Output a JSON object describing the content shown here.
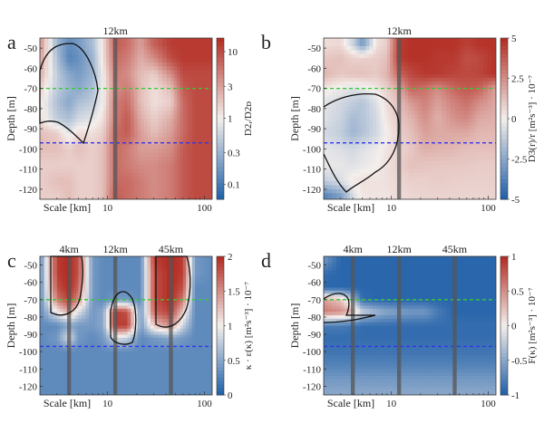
{
  "chart_data": [
    {
      "panel": "a",
      "type": "heatmap",
      "xlabel": "Scale [km]",
      "ylabel": "Depth [m]",
      "xscale": "log",
      "xlim": [
        2,
        120
      ],
      "ylim": [
        -125,
        -45
      ],
      "xticks": [
        {
          "value": 10,
          "label": "10"
        },
        {
          "value": 100,
          "label": "100"
        }
      ],
      "yticks": [
        -50,
        -60,
        -70,
        -80,
        -90,
        -100,
        -110,
        -120
      ],
      "vlines": [
        {
          "x": 12,
          "label": "12km"
        }
      ],
      "hlines": [
        {
          "y": -70,
          "color": "#33cc33"
        },
        {
          "y": -97,
          "color": "#3333ee"
        }
      ],
      "colorbar": {
        "label": "D2ᵣ/D2ᴅ",
        "scale": "log",
        "range": [
          0.06,
          16
        ],
        "ticks": [
          {
            "value": 0.1,
            "label": "0.1"
          },
          {
            "value": 0.3,
            "label": "0.3"
          },
          {
            "value": 1,
            "label": "1"
          },
          {
            "value": 3,
            "label": "3"
          },
          {
            "value": 10,
            "label": "10"
          }
        ]
      },
      "field_description": {
        "x_km": [
          2,
          3,
          4,
          5,
          7,
          9,
          12,
          16,
          22,
          30,
          45,
          60,
          80,
          120
        ],
        "depth_m": [
          -47,
          -55,
          -63,
          -70,
          -77,
          -85,
          -92,
          -100,
          -108,
          -116,
          -124
        ],
        "values_log10": [
          [
            0.6,
            -0.5,
            -0.8,
            -0.7,
            -0.4,
            0.1,
            0.9,
            0.8,
            0.5,
            0.9,
            1.1,
            1.1,
            1.1,
            1.1
          ],
          [
            0.5,
            -0.4,
            -0.9,
            -0.8,
            -0.5,
            0.1,
            0.8,
            0.7,
            0.4,
            0.6,
            1.0,
            1.1,
            1.1,
            1.1
          ],
          [
            0.4,
            -0.3,
            -0.6,
            -0.7,
            -0.5,
            0.0,
            0.7,
            0.6,
            0.3,
            0.2,
            0.6,
            1.0,
            1.0,
            1.0
          ],
          [
            0.2,
            -0.3,
            -0.5,
            -0.6,
            -0.4,
            0.0,
            0.6,
            0.7,
            0.3,
            0.1,
            0.3,
            0.9,
            1.0,
            1.0
          ],
          [
            0.1,
            -0.4,
            -0.6,
            -0.4,
            -0.3,
            0.0,
            0.7,
            0.8,
            0.3,
            0.1,
            0.2,
            0.8,
            1.0,
            1.0
          ],
          [
            0.1,
            -0.3,
            -0.4,
            -0.2,
            -0.1,
            0.1,
            0.7,
            0.9,
            0.4,
            0.2,
            0.4,
            0.8,
            1.0,
            1.0
          ],
          [
            0.3,
            0.2,
            -0.1,
            0.1,
            0.1,
            0.2,
            0.8,
            0.9,
            0.5,
            0.3,
            0.5,
            0.8,
            1.0,
            1.0
          ],
          [
            0.3,
            0.3,
            0.2,
            0.3,
            0.2,
            0.3,
            0.8,
            0.7,
            0.5,
            0.5,
            0.6,
            0.9,
            1.0,
            1.0
          ],
          [
            0.2,
            0.2,
            0.2,
            0.2,
            0.2,
            0.3,
            0.8,
            0.7,
            0.6,
            0.6,
            0.7,
            0.9,
            1.0,
            1.0
          ],
          [
            0.2,
            0.3,
            0.3,
            0.2,
            0.2,
            0.3,
            0.8,
            0.8,
            0.7,
            0.6,
            0.7,
            0.9,
            1.0,
            1.0
          ],
          [
            0.2,
            0.2,
            0.3,
            0.2,
            0.2,
            0.3,
            0.9,
            0.8,
            0.7,
            0.6,
            0.7,
            0.9,
            1.0,
            1.0
          ]
        ],
        "color_range": [
          -1.2,
          1.2
        ]
      }
    },
    {
      "panel": "b",
      "type": "heatmap",
      "xlabel": "Scale [km]",
      "ylabel": "Depth [m]",
      "xscale": "log",
      "xlim": [
        2,
        120
      ],
      "ylim": [
        -125,
        -45
      ],
      "xticks": [
        {
          "value": 10,
          "label": "10"
        },
        {
          "value": 100,
          "label": "100"
        }
      ],
      "yticks": [
        -50,
        -60,
        -70,
        -80,
        -90,
        -100,
        -110,
        -120
      ],
      "vlines": [
        {
          "x": 12,
          "label": "12km"
        }
      ],
      "hlines": [
        {
          "y": -70,
          "color": "#33cc33"
        },
        {
          "y": -97,
          "color": "#3333ee"
        }
      ],
      "colorbar": {
        "label": "D3(r)/r [m²s⁻³] · 10⁻⁷",
        "scale": "linear",
        "range": [
          -5,
          5
        ],
        "ticks": [
          {
            "value": -5,
            "label": "-5"
          },
          {
            "value": -2.5,
            "label": "-2.5"
          },
          {
            "value": 0,
            "label": "0"
          },
          {
            "value": 2.5,
            "label": "2.5"
          },
          {
            "value": 5,
            "label": "5"
          }
        ]
      },
      "field_description": {
        "x_km": [
          2,
          3,
          4,
          5,
          7,
          9,
          12,
          16,
          22,
          30,
          45,
          60,
          80,
          120
        ],
        "depth_m": [
          -47,
          -55,
          -63,
          -70,
          -77,
          -85,
          -92,
          -100,
          -108,
          -116,
          -124
        ],
        "values": [
          [
            0.4,
            0.5,
            -1.2,
            -3.5,
            0.3,
            0.8,
            4.5,
            4.8,
            4.8,
            4.8,
            4.8,
            4.5,
            4.8,
            4.8
          ],
          [
            1.0,
            1.2,
            0.8,
            0.8,
            0.9,
            1.2,
            4.6,
            4.8,
            4.8,
            4.6,
            4.6,
            4.0,
            4.2,
            4.8
          ],
          [
            1.5,
            1.0,
            1.2,
            1.2,
            1.0,
            1.5,
            3.5,
            4.2,
            4.6,
            4.6,
            4.3,
            4.2,
            4.3,
            4.8
          ],
          [
            0.2,
            -0.2,
            -0.5,
            -0.3,
            0.2,
            0.8,
            1.8,
            3.5,
            3.2,
            2.5,
            3.5,
            3.8,
            3.6,
            2.0
          ],
          [
            -0.4,
            -0.8,
            -1.2,
            -1.5,
            -0.5,
            0.5,
            1.2,
            2.2,
            2.8,
            2.0,
            2.8,
            3.2,
            2.5,
            1.8
          ],
          [
            -0.5,
            -1.0,
            -1.8,
            -1.5,
            -0.8,
            0.3,
            1.0,
            1.5,
            2.4,
            1.6,
            2.4,
            2.6,
            1.8,
            1.6
          ],
          [
            -0.8,
            -1.2,
            -2.0,
            -1.6,
            -0.8,
            0.0,
            0.8,
            1.2,
            2.0,
            1.8,
            1.8,
            1.8,
            1.4,
            1.4
          ],
          [
            -0.3,
            -0.6,
            -0.8,
            -0.5,
            -0.2,
            0.3,
            0.7,
            1.0,
            1.6,
            1.5,
            1.4,
            1.2,
            1.2,
            1.2
          ],
          [
            -0.2,
            -0.3,
            -0.5,
            -0.3,
            0.0,
            0.4,
            0.8,
            1.2,
            1.1,
            1.0,
            1.0,
            1.0,
            0.9,
            0.9
          ],
          [
            -1.2,
            -0.6,
            0.2,
            0.4,
            0.3,
            0.4,
            0.6,
            0.8,
            0.8,
            0.9,
            0.8,
            0.8,
            0.8,
            0.8
          ],
          [
            -4.0,
            -3.0,
            -0.8,
            0.2,
            0.3,
            0.3,
            0.5,
            0.6,
            0.7,
            0.7,
            0.7,
            0.7,
            0.7,
            0.7
          ]
        ],
        "color_range": [
          -5,
          5
        ]
      }
    },
    {
      "panel": "c",
      "type": "heatmap",
      "xlabel": "Scale [km]",
      "ylabel": "Depth [m]",
      "xscale": "log",
      "xlim": [
        2,
        120
      ],
      "ylim": [
        -125,
        -45
      ],
      "xticks": [
        {
          "value": 10,
          "label": "10"
        },
        {
          "value": 100,
          "label": "100"
        }
      ],
      "yticks": [
        -50,
        -60,
        -70,
        -80,
        -90,
        -100,
        -110,
        -120
      ],
      "vlines": [
        {
          "x": 4,
          "label": "4km"
        },
        {
          "x": 12,
          "label": "12km"
        },
        {
          "x": 45,
          "label": "45km"
        }
      ],
      "hlines": [
        {
          "y": -70,
          "color": "#33cc33"
        },
        {
          "y": -97,
          "color": "#3333ee"
        }
      ],
      "colorbar": {
        "label": "κ · ε(κ) [m²s⁻³] · 10⁻⁷",
        "scale": "linear",
        "range": [
          0,
          2
        ],
        "ticks": [
          {
            "value": 0,
            "label": "0"
          },
          {
            "value": 0.5,
            "label": "0.5"
          },
          {
            "value": 1,
            "label": "1"
          },
          {
            "value": 1.5,
            "label": "1.5"
          },
          {
            "value": 2,
            "label": "2"
          }
        ]
      },
      "field_description": {
        "x_km": [
          2,
          3,
          4,
          5,
          7,
          9,
          12,
          16,
          22,
          30,
          45,
          60,
          80,
          120
        ],
        "depth_m": [
          -47,
          -55,
          -63,
          -70,
          -77,
          -85,
          -92,
          -100,
          -108,
          -116,
          -124
        ],
        "values": [
          [
            0.3,
            1.9,
            2.0,
            1.8,
            0.4,
            0.3,
            0.3,
            0.3,
            0.3,
            1.9,
            2.0,
            1.9,
            0.4,
            0.3
          ],
          [
            0.3,
            1.9,
            2.0,
            1.8,
            0.4,
            0.3,
            0.3,
            0.3,
            0.3,
            1.8,
            2.0,
            1.9,
            0.4,
            0.3
          ],
          [
            0.3,
            1.8,
            2.0,
            1.7,
            0.4,
            0.3,
            0.3,
            0.3,
            0.3,
            1.8,
            2.0,
            1.8,
            0.3,
            0.3
          ],
          [
            0.3,
            1.6,
            1.9,
            1.5,
            0.4,
            0.3,
            0.4,
            0.4,
            0.3,
            1.8,
            2.0,
            1.6,
            0.3,
            0.3
          ],
          [
            0.3,
            1.0,
            1.4,
            0.9,
            0.4,
            0.5,
            1.9,
            1.8,
            0.4,
            1.7,
            1.9,
            1.2,
            0.3,
            0.3
          ],
          [
            0.3,
            0.3,
            0.5,
            0.4,
            0.4,
            0.5,
            1.9,
            1.9,
            0.4,
            1.2,
            1.5,
            0.8,
            0.3,
            0.3
          ],
          [
            0.3,
            0.4,
            0.9,
            0.4,
            0.3,
            0.4,
            0.9,
            0.8,
            0.3,
            0.4,
            0.5,
            0.4,
            0.3,
            0.3
          ],
          [
            0.3,
            0.3,
            0.3,
            0.3,
            0.3,
            0.3,
            0.3,
            0.3,
            0.3,
            0.3,
            0.3,
            0.3,
            0.3,
            0.3
          ],
          [
            0.3,
            0.3,
            0.3,
            0.3,
            0.3,
            0.3,
            0.3,
            0.3,
            0.3,
            0.3,
            0.3,
            0.3,
            0.3,
            0.3
          ],
          [
            0.3,
            0.3,
            0.3,
            0.3,
            0.3,
            0.3,
            0.3,
            0.3,
            0.3,
            0.3,
            0.3,
            0.3,
            0.3,
            0.3
          ],
          [
            0.3,
            0.3,
            0.3,
            0.3,
            0.3,
            0.3,
            0.3,
            0.3,
            0.3,
            0.3,
            0.3,
            0.3,
            0.3,
            0.3
          ]
        ],
        "color_range": [
          0,
          2
        ]
      }
    },
    {
      "panel": "d",
      "type": "heatmap",
      "xlabel": "Scale [km]",
      "ylabel": "Depth [m]",
      "xscale": "log",
      "xlim": [
        2,
        120
      ],
      "ylim": [
        -125,
        -45
      ],
      "xticks": [
        {
          "value": 10,
          "label": "10"
        },
        {
          "value": 100,
          "label": "100"
        }
      ],
      "yticks": [
        -50,
        -60,
        -70,
        -80,
        -90,
        -100,
        -110,
        -120
      ],
      "vlines": [
        {
          "x": 4,
          "label": "4km"
        },
        {
          "x": 12,
          "label": "12km"
        },
        {
          "x": 45,
          "label": "45km"
        }
      ],
      "hlines": [
        {
          "y": -70,
          "color": "#33cc33"
        },
        {
          "y": -97,
          "color": "#3333ee"
        }
      ],
      "colorbar": {
        "label": "F(κ) [m²s⁻³] · 10⁻⁷",
        "scale": "linear",
        "range": [
          -1,
          1
        ],
        "ticks": [
          {
            "value": -1,
            "label": "-1"
          },
          {
            "value": -0.5,
            "label": "-0.5"
          },
          {
            "value": 0,
            "label": "0"
          },
          {
            "value": 0.5,
            "label": "0.5"
          },
          {
            "value": 1,
            "label": "1"
          }
        ]
      },
      "field_description": {
        "x_km": [
          2,
          3,
          4,
          5,
          7,
          9,
          12,
          16,
          22,
          30,
          45,
          60,
          80,
          120
        ],
        "depth_m": [
          -47,
          -55,
          -63,
          -70,
          -77,
          -85,
          -92,
          -100,
          -108,
          -116,
          -124
        ],
        "values": [
          [
            -0.6,
            -0.95,
            -0.95,
            -0.95,
            -0.95,
            -0.95,
            -0.95,
            -0.95,
            -0.95,
            -0.95,
            -0.95,
            -0.95,
            -0.95,
            -0.95
          ],
          [
            -0.9,
            -0.95,
            -0.95,
            -0.95,
            -0.95,
            -0.95,
            -0.95,
            -0.95,
            -0.95,
            -0.95,
            -0.95,
            -0.95,
            -0.95,
            -0.95
          ],
          [
            -0.95,
            -0.95,
            -0.95,
            -0.95,
            -0.95,
            -0.95,
            -0.95,
            -0.95,
            -0.95,
            -0.95,
            -0.95,
            -0.95,
            -0.95,
            -0.95
          ],
          [
            0.4,
            0.2,
            -0.3,
            -0.9,
            -0.95,
            -0.95,
            -0.95,
            -0.95,
            -0.95,
            -0.95,
            -0.95,
            -0.95,
            -0.95,
            -0.95
          ],
          [
            0.6,
            0.5,
            0.3,
            -0.2,
            -0.4,
            -0.5,
            -0.55,
            -0.6,
            -0.6,
            -0.8,
            -0.95,
            -0.95,
            -0.95,
            -0.95
          ],
          [
            -0.8,
            -0.8,
            -0.85,
            -0.9,
            -0.9,
            -0.9,
            -0.9,
            -0.9,
            -0.9,
            -0.9,
            -0.9,
            -0.9,
            -0.9,
            -0.9
          ],
          [
            -0.9,
            -0.9,
            -0.9,
            -0.9,
            -0.9,
            -0.9,
            -0.9,
            -0.9,
            -0.9,
            -0.9,
            -0.9,
            -0.9,
            -0.9,
            -0.9
          ],
          [
            -0.85,
            -0.85,
            -0.85,
            -0.85,
            -0.85,
            -0.85,
            -0.85,
            -0.85,
            -0.85,
            -0.85,
            -0.85,
            -0.85,
            -0.85,
            -0.85
          ],
          [
            -0.75,
            -0.75,
            -0.75,
            -0.75,
            -0.75,
            -0.75,
            -0.75,
            -0.75,
            -0.75,
            -0.75,
            -0.75,
            -0.75,
            -0.75,
            -0.75
          ],
          [
            -0.6,
            -0.6,
            -0.6,
            -0.6,
            -0.6,
            -0.6,
            -0.6,
            -0.6,
            -0.6,
            -0.6,
            -0.6,
            -0.6,
            -0.6,
            -0.6
          ],
          [
            -0.5,
            -0.5,
            -0.5,
            -0.5,
            -0.5,
            -0.5,
            -0.5,
            -0.5,
            -0.5,
            -0.5,
            -0.5,
            -0.5,
            -0.5,
            -0.5
          ]
        ],
        "color_range": [
          -1,
          1
        ]
      }
    }
  ],
  "colors": {
    "diverging_low": "#1f5fa8",
    "diverging_mid": "#f4efec",
    "diverging_high": "#b22a20",
    "green_line": "#33cc33",
    "blue_line": "#3333ee",
    "vline": "#555555"
  }
}
